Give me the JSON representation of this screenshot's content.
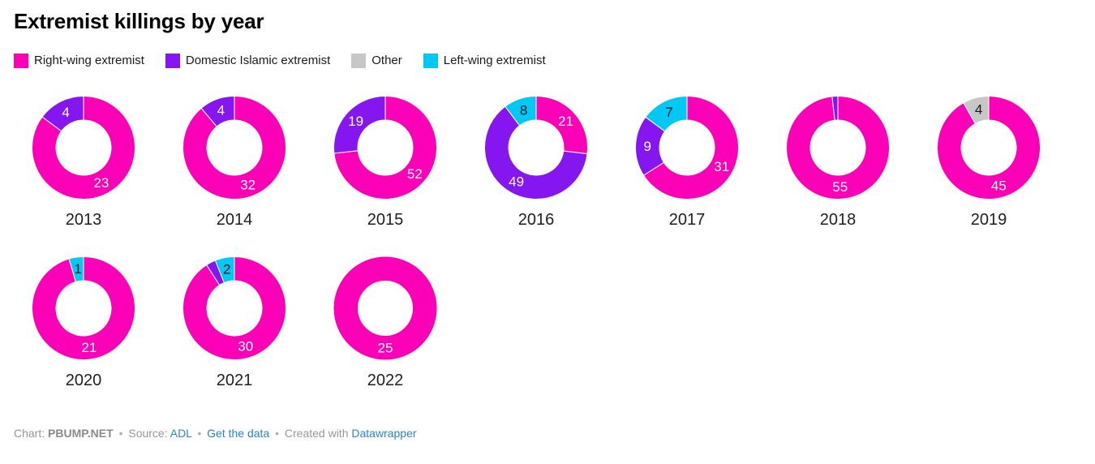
{
  "title": "Extremist killings by year",
  "chart_data": {
    "type": "pie",
    "subtype": "donut_small_multiples",
    "title": "Extremist killings by year",
    "legend_position": "top",
    "rows": [
      7,
      3
    ],
    "geometry": {
      "outer_radius": 63.5,
      "inner_radius": 34,
      "size": 128
    },
    "categories": [
      {
        "label": "Right-wing extremist",
        "color": "#fb00b6",
        "value_label_color": "#ffffff"
      },
      {
        "label": "Domestic Islamic extremist",
        "color": "#8516f0",
        "value_label_color": "#ffffff"
      },
      {
        "label": "Other",
        "color": "#c7c7c7",
        "value_label_color": "#1a1a1a"
      },
      {
        "label": "Left-wing extremist",
        "color": "#00c8f5",
        "value_label_color": "#1a1a1a"
      }
    ],
    "charts": [
      {
        "year": "2013",
        "slices": [
          {
            "category": "Right-wing extremist",
            "value": 23,
            "label": "23"
          },
          {
            "category": "Domestic Islamic extremist",
            "value": 4,
            "label": "4"
          }
        ]
      },
      {
        "year": "2014",
        "slices": [
          {
            "category": "Right-wing extremist",
            "value": 32,
            "label": "32"
          },
          {
            "category": "Domestic Islamic extremist",
            "value": 4,
            "label": "4"
          }
        ]
      },
      {
        "year": "2015",
        "slices": [
          {
            "category": "Right-wing extremist",
            "value": 52,
            "label": "52"
          },
          {
            "category": "Domestic Islamic extremist",
            "value": 19,
            "label": "19"
          }
        ]
      },
      {
        "year": "2016",
        "slices": [
          {
            "category": "Right-wing extremist",
            "value": 21,
            "label": "21"
          },
          {
            "category": "Domestic Islamic extremist",
            "value": 49,
            "label": "49"
          },
          {
            "category": "Left-wing extremist",
            "value": 8,
            "label": "8"
          }
        ]
      },
      {
        "year": "2017",
        "slices": [
          {
            "category": "Right-wing extremist",
            "value": 31,
            "label": "31"
          },
          {
            "category": "Domestic Islamic extremist",
            "value": 9,
            "label": "9"
          },
          {
            "category": "Left-wing extremist",
            "value": 7,
            "label": "7"
          }
        ]
      },
      {
        "year": "2018",
        "slices": [
          {
            "category": "Right-wing extremist",
            "value": 55,
            "label": "55"
          },
          {
            "category": "Domestic Islamic extremist",
            "value": 1,
            "label": ""
          }
        ]
      },
      {
        "year": "2019",
        "slices": [
          {
            "category": "Right-wing extremist",
            "value": 45,
            "label": "45"
          },
          {
            "category": "Other",
            "value": 4,
            "label": "4"
          }
        ]
      },
      {
        "year": "2020",
        "slices": [
          {
            "category": "Right-wing extremist",
            "value": 21,
            "label": "21"
          },
          {
            "category": "Left-wing extremist",
            "value": 1,
            "label": "1"
          }
        ]
      },
      {
        "year": "2021",
        "slices": [
          {
            "category": "Right-wing extremist",
            "value": 30,
            "label": "30"
          },
          {
            "category": "Domestic Islamic extremist",
            "value": 1,
            "label": ""
          },
          {
            "category": "Left-wing extremist",
            "value": 2,
            "label": "2"
          }
        ]
      },
      {
        "year": "2022",
        "slices": [
          {
            "category": "Right-wing extremist",
            "value": 25,
            "label": "25"
          }
        ]
      }
    ]
  },
  "footer": {
    "chart_label": "Chart:",
    "chart_author": "PBUMP.NET",
    "separator": "•",
    "source_label": "Source:",
    "source_name": "ADL",
    "get_data_label": "Get the data",
    "created_with_label": "Created with",
    "tool_name": "Datawrapper"
  }
}
